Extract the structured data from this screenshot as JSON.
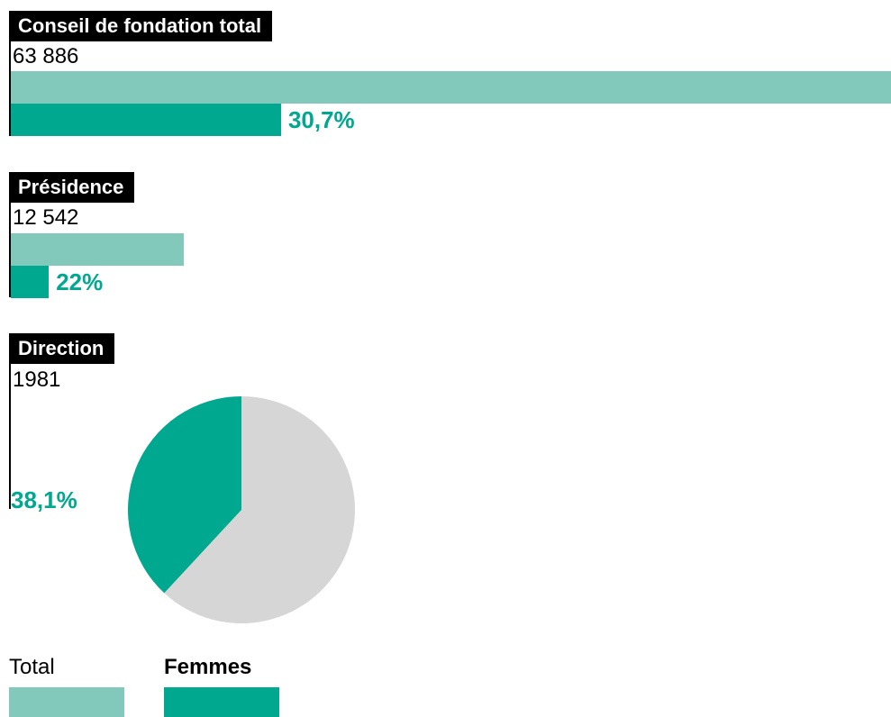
{
  "colors": {
    "total": "#82c8bb",
    "women": "#00a88f",
    "pie_rest": "#d6d6d6",
    "title_bg": "#000000",
    "title_text": "#ffffff"
  },
  "chart_data": [
    {
      "type": "bar",
      "title": "Conseil de fondation total",
      "total_label": "63 886",
      "total": 63886,
      "women_share": 30.7,
      "women_label": "30,7%"
    },
    {
      "type": "bar",
      "title": "Présidence",
      "total_label": "12 542",
      "total": 12542,
      "women_share": 22.0,
      "women_label": "22%"
    },
    {
      "type": "pie",
      "title": "Direction",
      "total_label": "1981",
      "total": 1981,
      "women_share": 38.1,
      "women_label": "38,1%"
    }
  ],
  "legend": {
    "total_label": "Total",
    "women_label": "Femmes"
  }
}
